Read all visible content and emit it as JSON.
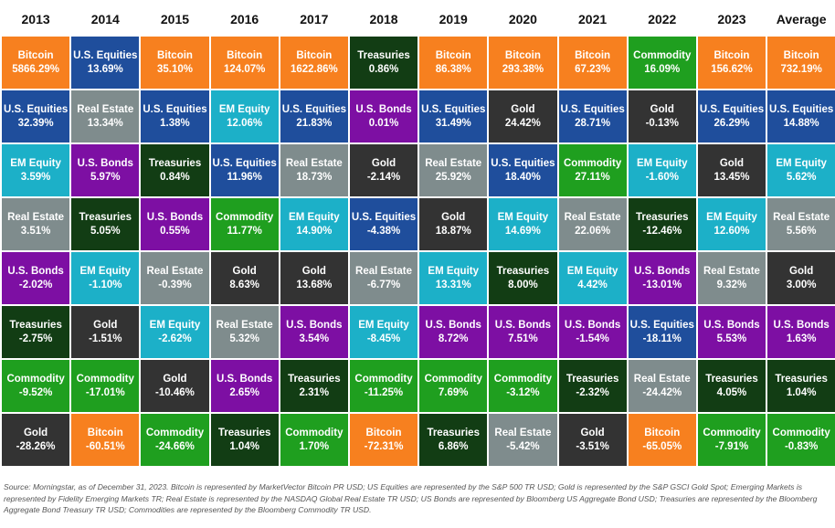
{
  "chart_data": {
    "type": "table",
    "columns": [
      "2013",
      "2014",
      "2015",
      "2016",
      "2017",
      "2018",
      "2019",
      "2020",
      "2021",
      "2022",
      "2023",
      "Average"
    ],
    "rank_table": [
      [
        [
          "Bitcoin",
          "5866.29%"
        ],
        [
          "U.S. Equities",
          "13.69%"
        ],
        [
          "Bitcoin",
          "35.10%"
        ],
        [
          "Bitcoin",
          "124.07%"
        ],
        [
          "Bitcoin",
          "1622.86%"
        ],
        [
          "Treasuries",
          "0.86%"
        ],
        [
          "Bitcoin",
          "86.38%"
        ],
        [
          "Bitcoin",
          "293.38%"
        ],
        [
          "Bitcoin",
          "67.23%"
        ],
        [
          "Commodity",
          "16.09%"
        ],
        [
          "Bitcoin",
          "156.62%"
        ],
        [
          "Bitcoin",
          "732.19%"
        ]
      ],
      [
        [
          "U.S. Equities",
          "32.39%"
        ],
        [
          "Real Estate",
          "13.34%"
        ],
        [
          "U.S. Equities",
          "1.38%"
        ],
        [
          "EM Equity",
          "12.06%"
        ],
        [
          "U.S. Equities",
          "21.83%"
        ],
        [
          "U.S. Bonds",
          "0.01%"
        ],
        [
          "U.S. Equities",
          "31.49%"
        ],
        [
          "Gold",
          "24.42%"
        ],
        [
          "U.S. Equities",
          "28.71%"
        ],
        [
          "Gold",
          "-0.13%"
        ],
        [
          "U.S. Equities",
          "26.29%"
        ],
        [
          "U.S. Equities",
          "14.88%"
        ]
      ],
      [
        [
          "EM Equity",
          "3.59%"
        ],
        [
          "U.S. Bonds",
          "5.97%"
        ],
        [
          "Treasuries",
          "0.84%"
        ],
        [
          "U.S. Equities",
          "11.96%"
        ],
        [
          "Real Estate",
          "18.73%"
        ],
        [
          "Gold",
          "-2.14%"
        ],
        [
          "Real Estate",
          "25.92%"
        ],
        [
          "U.S. Equities",
          "18.40%"
        ],
        [
          "Commodity",
          "27.11%"
        ],
        [
          "EM Equity",
          "-1.60%"
        ],
        [
          "Gold",
          "13.45%"
        ],
        [
          "EM Equity",
          "5.62%"
        ]
      ],
      [
        [
          "Real Estate",
          "3.51%"
        ],
        [
          "Treasuries",
          "5.05%"
        ],
        [
          "U.S. Bonds",
          "0.55%"
        ],
        [
          "Commodity",
          "11.77%"
        ],
        [
          "EM Equity",
          "14.90%"
        ],
        [
          "U.S. Equities",
          "-4.38%"
        ],
        [
          "Gold",
          "18.87%"
        ],
        [
          "EM Equity",
          "14.69%"
        ],
        [
          "Real Estate",
          "22.06%"
        ],
        [
          "Treasuries",
          "-12.46%"
        ],
        [
          "EM Equity",
          "12.60%"
        ],
        [
          "Real Estate",
          "5.56%"
        ]
      ],
      [
        [
          "U.S. Bonds",
          "-2.02%"
        ],
        [
          "EM Equity",
          "-1.10%"
        ],
        [
          "Real Estate",
          "-0.39%"
        ],
        [
          "Gold",
          "8.63%"
        ],
        [
          "Gold",
          "13.68%"
        ],
        [
          "Real Estate",
          "-6.77%"
        ],
        [
          "EM Equity",
          "13.31%"
        ],
        [
          "Treasuries",
          "8.00%"
        ],
        [
          "EM Equity",
          "4.42%"
        ],
        [
          "U.S. Bonds",
          "-13.01%"
        ],
        [
          "Real Estate",
          "9.32%"
        ],
        [
          "Gold",
          "3.00%"
        ]
      ],
      [
        [
          "Treasuries",
          "-2.75%"
        ],
        [
          "Gold",
          "-1.51%"
        ],
        [
          "EM Equity",
          "-2.62%"
        ],
        [
          "Real Estate",
          "5.32%"
        ],
        [
          "U.S. Bonds",
          "3.54%"
        ],
        [
          "EM Equity",
          "-8.45%"
        ],
        [
          "U.S. Bonds",
          "8.72%"
        ],
        [
          "U.S. Bonds",
          "7.51%"
        ],
        [
          "U.S. Bonds",
          "-1.54%"
        ],
        [
          "U.S. Equities",
          "-18.11%"
        ],
        [
          "U.S. Bonds",
          "5.53%"
        ],
        [
          "U.S. Bonds",
          "1.63%"
        ]
      ],
      [
        [
          "Commodity",
          "-9.52%"
        ],
        [
          "Commodity",
          "-17.01%"
        ],
        [
          "Gold",
          "-10.46%"
        ],
        [
          "U.S. Bonds",
          "2.65%"
        ],
        [
          "Treasuries",
          "2.31%"
        ],
        [
          "Commodity",
          "-11.25%"
        ],
        [
          "Commodity",
          "7.69%"
        ],
        [
          "Commodity",
          "-3.12%"
        ],
        [
          "Treasuries",
          "-2.32%"
        ],
        [
          "Real Estate",
          "-24.42%"
        ],
        [
          "Treasuries",
          "4.05%"
        ],
        [
          "Treasuries",
          "1.04%"
        ]
      ],
      [
        [
          "Gold",
          "-28.26%"
        ],
        [
          "Bitcoin",
          "-60.51%"
        ],
        [
          "Commodity",
          "-24.66%"
        ],
        [
          "Treasuries",
          "1.04%"
        ],
        [
          "Commodity",
          "1.70%"
        ],
        [
          "Bitcoin",
          "-72.31%"
        ],
        [
          "Treasuries",
          "6.86%"
        ],
        [
          "Real Estate",
          "-5.42%"
        ],
        [
          "Gold",
          "-3.51%"
        ],
        [
          "Bitcoin",
          "-65.05%"
        ],
        [
          "Commodity",
          "-7.91%"
        ],
        [
          "Commodity",
          "-0.83%"
        ]
      ]
    ],
    "colors": {
      "Bitcoin": "#f7801f",
      "U.S. Equities": "#1f4e9c",
      "Real Estate": "#7f8c8d",
      "EM Equity": "#1cb0c8",
      "U.S. Bonds": "#7d0fa3",
      "Treasuries": "#123d14",
      "Commodity": "#1f9f1f",
      "Gold": "#333333"
    },
    "source_note": "Source: Morningstar, as of December 31, 2023. Bitcoin is represented by MarketVector Bitcoin PR USD; US Equities are represented by the S&P 500 TR USD; Gold is represented by the S&P GSCI Gold Spot; Emerging Markets is represented by Fidelity Emerging Markets TR; Real Estate is represented by the NASDAQ Global Real Estate TR USD; US Bonds are represented by Bloomberg US Aggregate Bond USD; Treasuries are represented by the Bloomberg Aggregate Bond Treasury TR USD; Commodities are represented by the Bloomberg Commodity TR USD."
  }
}
